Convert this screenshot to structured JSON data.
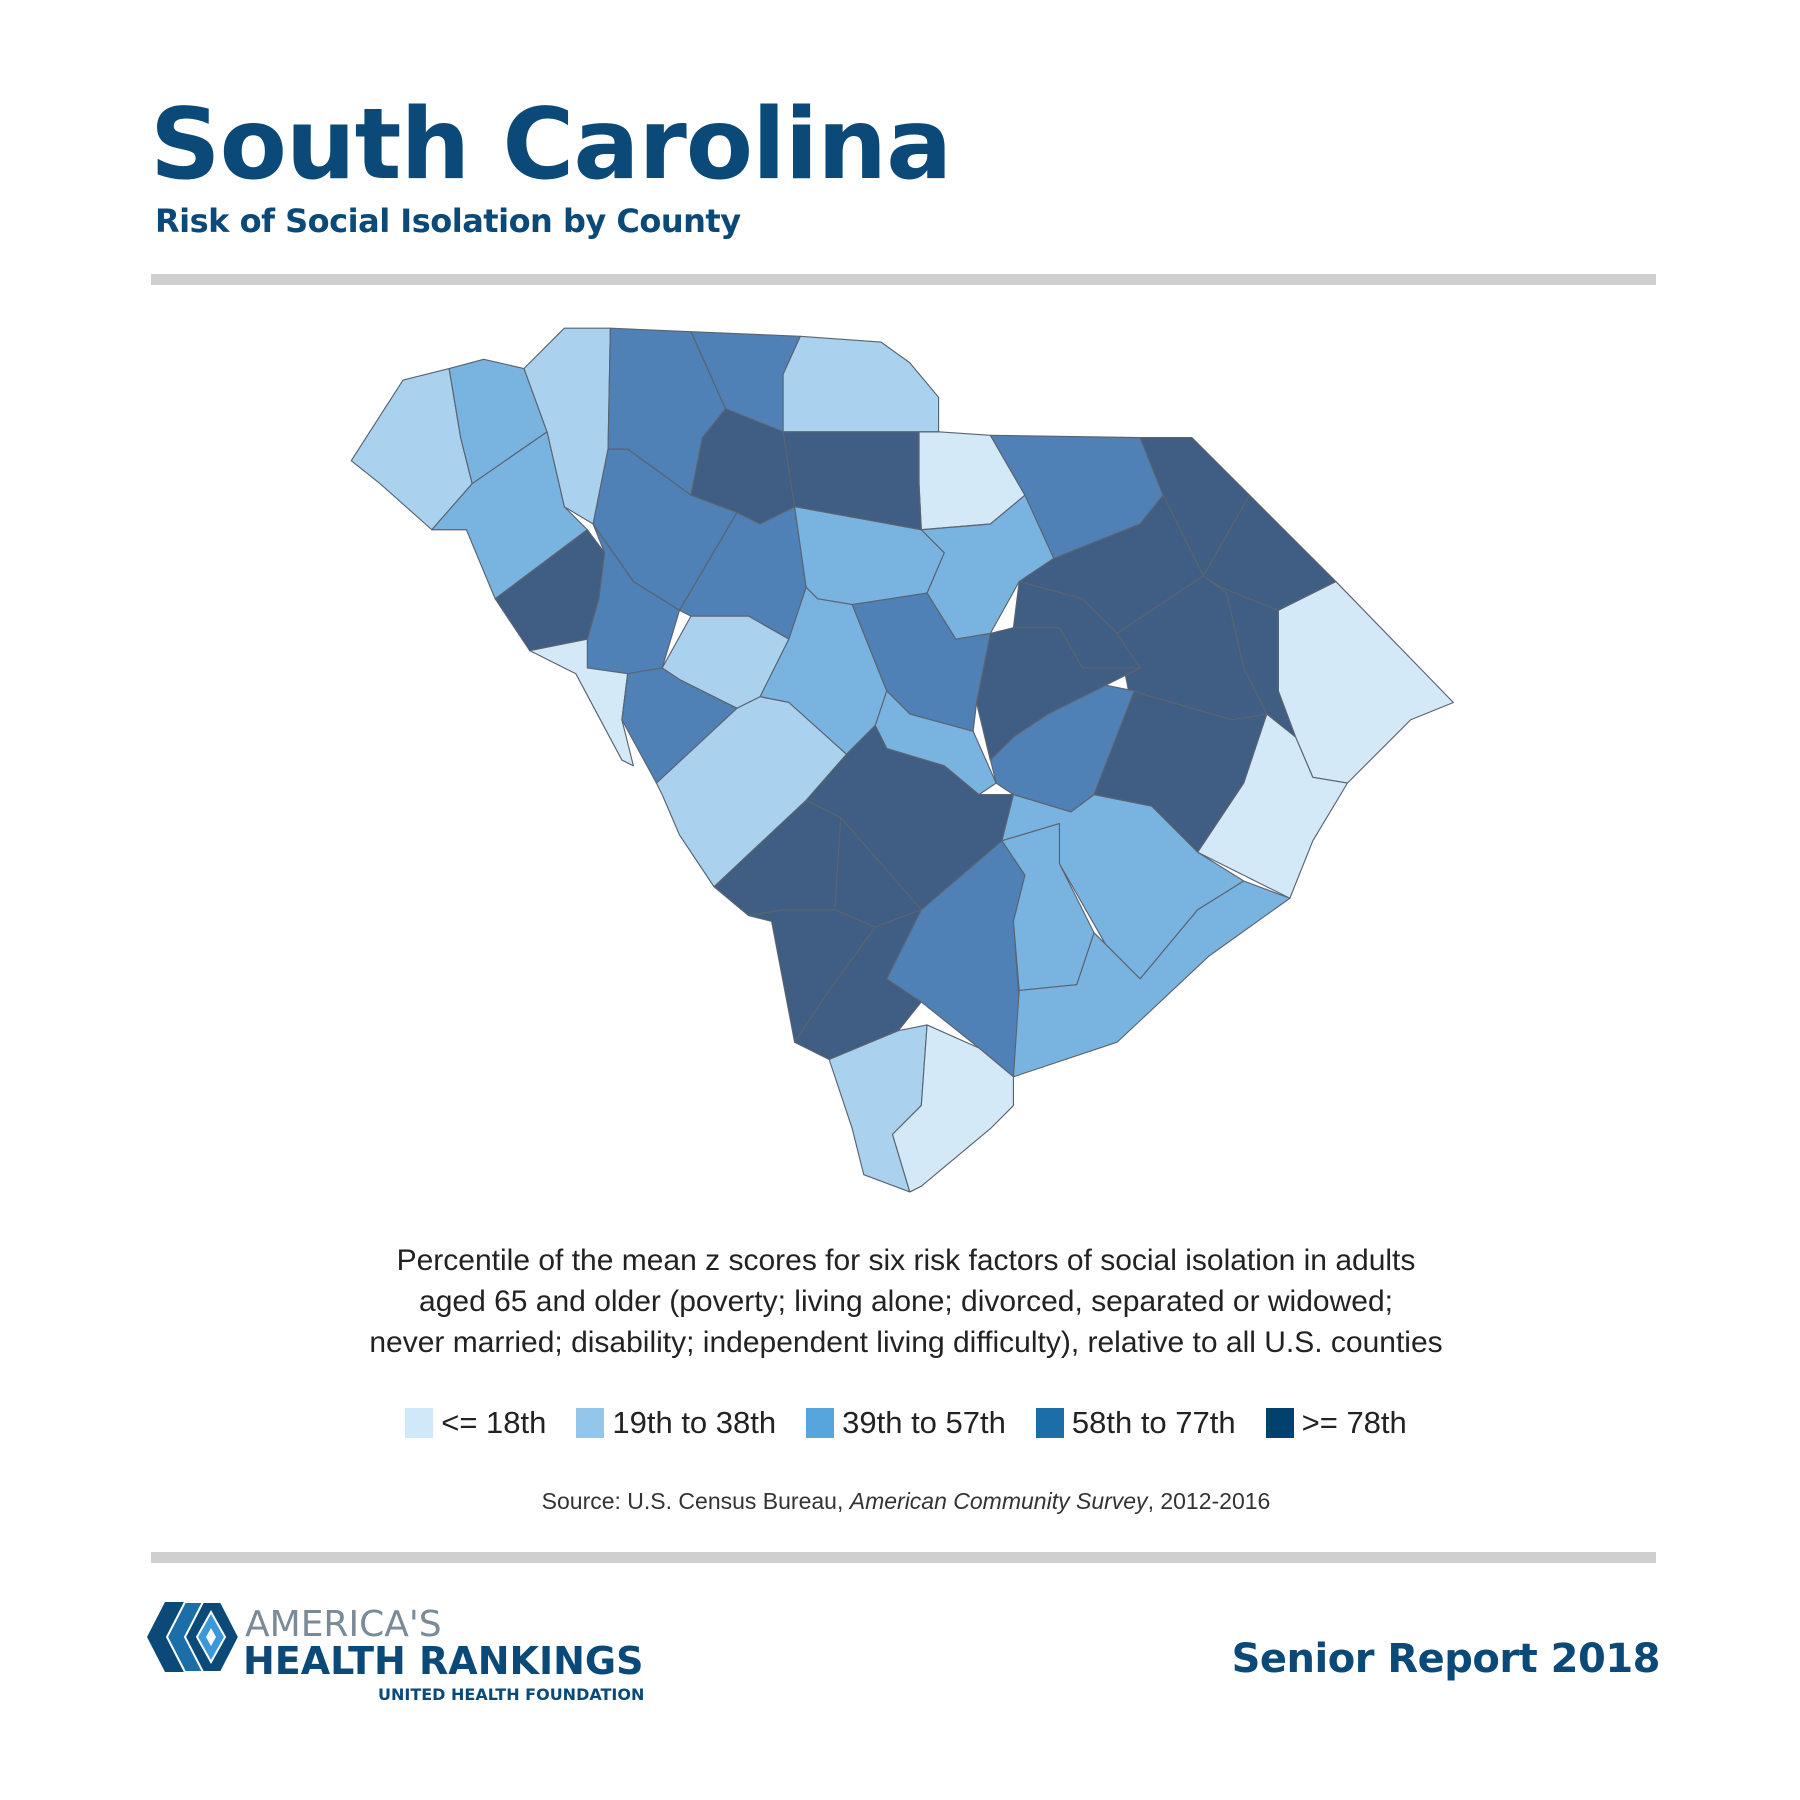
{
  "header": {
    "title": "South Carolina",
    "subtitle": "Risk of Social Isolation by County"
  },
  "description": [
    "Percentile of the mean z scores for six risk factors of social isolation in adults",
    "aged 65 and older (poverty; living alone; divorced, separated or widowed;",
    "never married; disability; independent living difficulty), relative to all U.S. counties"
  ],
  "source": {
    "prefix": "Source: U.S. Census Bureau, ",
    "italic": "American Community Survey",
    "suffix": ", 2012-2016"
  },
  "footer": {
    "report": "Senior Report 2018",
    "logo_line1": "AMERICA'S",
    "logo_line2": "HEALTH RANKINGS",
    "logo_line3": "UNITED HEALTH FOUNDATION"
  },
  "chart_data": {
    "type": "choropleth",
    "title": "South Carolina",
    "subtitle": "Risk of Social Isolation by County",
    "legend": [
      {
        "label": "<= 18th",
        "color": "#cfe9f9",
        "map_color": "#d3e9f8"
      },
      {
        "label": "19th to 38th",
        "color": "#93c6ea",
        "map_color": "#aad1ee"
      },
      {
        "label": "39th to 57th",
        "color": "#56a5dc",
        "map_color": "#79b4e1"
      },
      {
        "label": "58th to 77th",
        "color": "#1c6ea8",
        "map_color": "#4f80b6"
      },
      {
        "label": ">= 78th",
        "color": "#00416e",
        "map_color": "#405d83"
      }
    ],
    "counties": [
      {
        "name": "Oconee",
        "bin": 1
      },
      {
        "name": "Pickens",
        "bin": 2
      },
      {
        "name": "Greenville",
        "bin": 1
      },
      {
        "name": "Anderson",
        "bin": 2
      },
      {
        "name": "Spartanburg",
        "bin": 3
      },
      {
        "name": "Cherokee",
        "bin": 3
      },
      {
        "name": "York",
        "bin": 1
      },
      {
        "name": "Lancaster",
        "bin": 0
      },
      {
        "name": "Chesterfield",
        "bin": 3
      },
      {
        "name": "Marlboro",
        "bin": 4
      },
      {
        "name": "Dillon",
        "bin": 4
      },
      {
        "name": "Horry",
        "bin": 0
      },
      {
        "name": "Union",
        "bin": 4
      },
      {
        "name": "Chester",
        "bin": 4
      },
      {
        "name": "Laurens",
        "bin": 3
      },
      {
        "name": "Abbeville",
        "bin": 4
      },
      {
        "name": "Greenwood",
        "bin": 3
      },
      {
        "name": "McCormick",
        "bin": 0
      },
      {
        "name": "Newberry",
        "bin": 3
      },
      {
        "name": "Fairfield",
        "bin": 2
      },
      {
        "name": "Kershaw",
        "bin": 2
      },
      {
        "name": "Darlington",
        "bin": 4
      },
      {
        "name": "Marion",
        "bin": 4
      },
      {
        "name": "Florence",
        "bin": 4
      },
      {
        "name": "Lee",
        "bin": 4
      },
      {
        "name": "Sumter",
        "bin": 4
      },
      {
        "name": "Saluda",
        "bin": 1
      },
      {
        "name": "Edgefield",
        "bin": 3
      },
      {
        "name": "Lexington",
        "bin": 2
      },
      {
        "name": "Richland",
        "bin": 3
      },
      {
        "name": "Aiken",
        "bin": 1
      },
      {
        "name": "Calhoun",
        "bin": 2
      },
      {
        "name": "Clarendon",
        "bin": 3
      },
      {
        "name": "Williamsburg",
        "bin": 4
      },
      {
        "name": "Georgetown",
        "bin": 0
      },
      {
        "name": "Orangeburg",
        "bin": 4
      },
      {
        "name": "Barnwell",
        "bin": 4
      },
      {
        "name": "Bamberg",
        "bin": 4
      },
      {
        "name": "Allendale",
        "bin": 4
      },
      {
        "name": "Hampton",
        "bin": 4
      },
      {
        "name": "Colleton",
        "bin": 3
      },
      {
        "name": "Dorchester",
        "bin": 2
      },
      {
        "name": "Berkeley",
        "bin": 2
      },
      {
        "name": "Charleston",
        "bin": 2
      },
      {
        "name": "Jasper",
        "bin": 1
      },
      {
        "name": "Beaufort",
        "bin": 0
      }
    ]
  }
}
